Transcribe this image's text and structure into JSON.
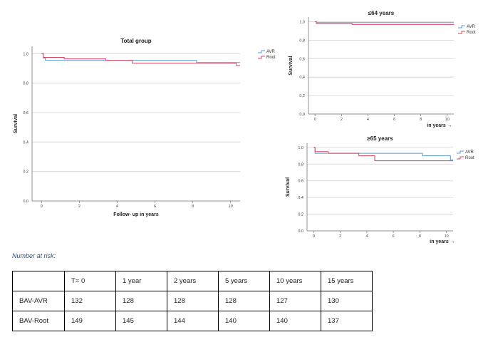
{
  "chart_data": [
    {
      "type": "line",
      "title": "Total group",
      "xlabel": "Follow- up in years",
      "ylabel": "Survival",
      "xlim": [
        -0.5,
        10.5
      ],
      "ylim": [
        0,
        1.05
      ],
      "xticks": [
        0,
        2,
        4,
        6,
        8,
        10
      ],
      "yticks": [
        "0,0",
        "0,2",
        "0,4",
        "0,6",
        "0,8",
        "1,0"
      ],
      "grid": true,
      "legend_position": "right",
      "series": [
        {
          "name": "AVR",
          "color": "#5b9bd5",
          "x": [
            0,
            0.1,
            0.2,
            8.2,
            10.5
          ],
          "y": [
            1.0,
            0.97,
            0.955,
            0.94,
            0.94
          ]
        },
        {
          "name": "Root",
          "color": "#d6455f",
          "x": [
            0,
            0.1,
            1.2,
            3.4,
            4.8,
            10.3,
            10.5
          ],
          "y": [
            1.0,
            0.975,
            0.965,
            0.955,
            0.935,
            0.92,
            0.92
          ]
        }
      ]
    },
    {
      "type": "line",
      "title": "≤64 years",
      "xlabel": "in years →",
      "ylabel": "Survival",
      "xlim": [
        -0.5,
        10.5
      ],
      "ylim": [
        0,
        1.05
      ],
      "xticks": [
        0,
        2,
        4,
        6,
        8,
        10
      ],
      "yticks": [
        "0,0",
        "0,2",
        "0,4",
        "0,6",
        "0,8",
        "1,0"
      ],
      "grid": true,
      "legend_position": "right",
      "series": [
        {
          "name": "AVR",
          "color": "#5b9bd5",
          "x": [
            0,
            0.1,
            10.5
          ],
          "y": [
            1.0,
            0.99,
            0.99
          ]
        },
        {
          "name": "Root",
          "color": "#d6455f",
          "x": [
            0,
            0.1,
            2.8,
            10.5
          ],
          "y": [
            1.0,
            0.98,
            0.97,
            0.97
          ]
        }
      ]
    },
    {
      "type": "line",
      "title": "≥65 years",
      "xlabel": "in years →",
      "ylabel": "Survival",
      "xlim": [
        -0.5,
        10.5
      ],
      "ylim": [
        0,
        1.05
      ],
      "xticks": [
        0,
        2,
        4,
        6,
        8,
        10
      ],
      "yticks": [
        "0,0",
        "0,2",
        "0,4",
        "0,6",
        "0,8",
        "1,0"
      ],
      "grid": true,
      "legend_position": "right",
      "series": [
        {
          "name": "AVR",
          "color": "#5b9bd5",
          "x": [
            0,
            0.1,
            8.2,
            10.3,
            10.5
          ],
          "y": [
            1.0,
            0.93,
            0.9,
            0.85,
            0.85
          ]
        },
        {
          "name": "Root",
          "color": "#d6455f",
          "x": [
            0,
            0.1,
            1.1,
            3.4,
            4.6,
            10.5
          ],
          "y": [
            1.0,
            0.95,
            0.93,
            0.9,
            0.84,
            0.84
          ]
        }
      ]
    }
  ],
  "risk_table": {
    "caption": "Number at risk:",
    "columns": [
      "",
      "T= 0",
      "1 year",
      "2 years",
      "5 years",
      "10 years",
      "15 years"
    ],
    "rows": [
      [
        "BAV-AVR",
        "132",
        "128",
        "128",
        "128",
        "127",
        "130"
      ],
      [
        "BAV-Root",
        "149",
        "145",
        "144",
        "140",
        "140",
        "137"
      ]
    ]
  }
}
